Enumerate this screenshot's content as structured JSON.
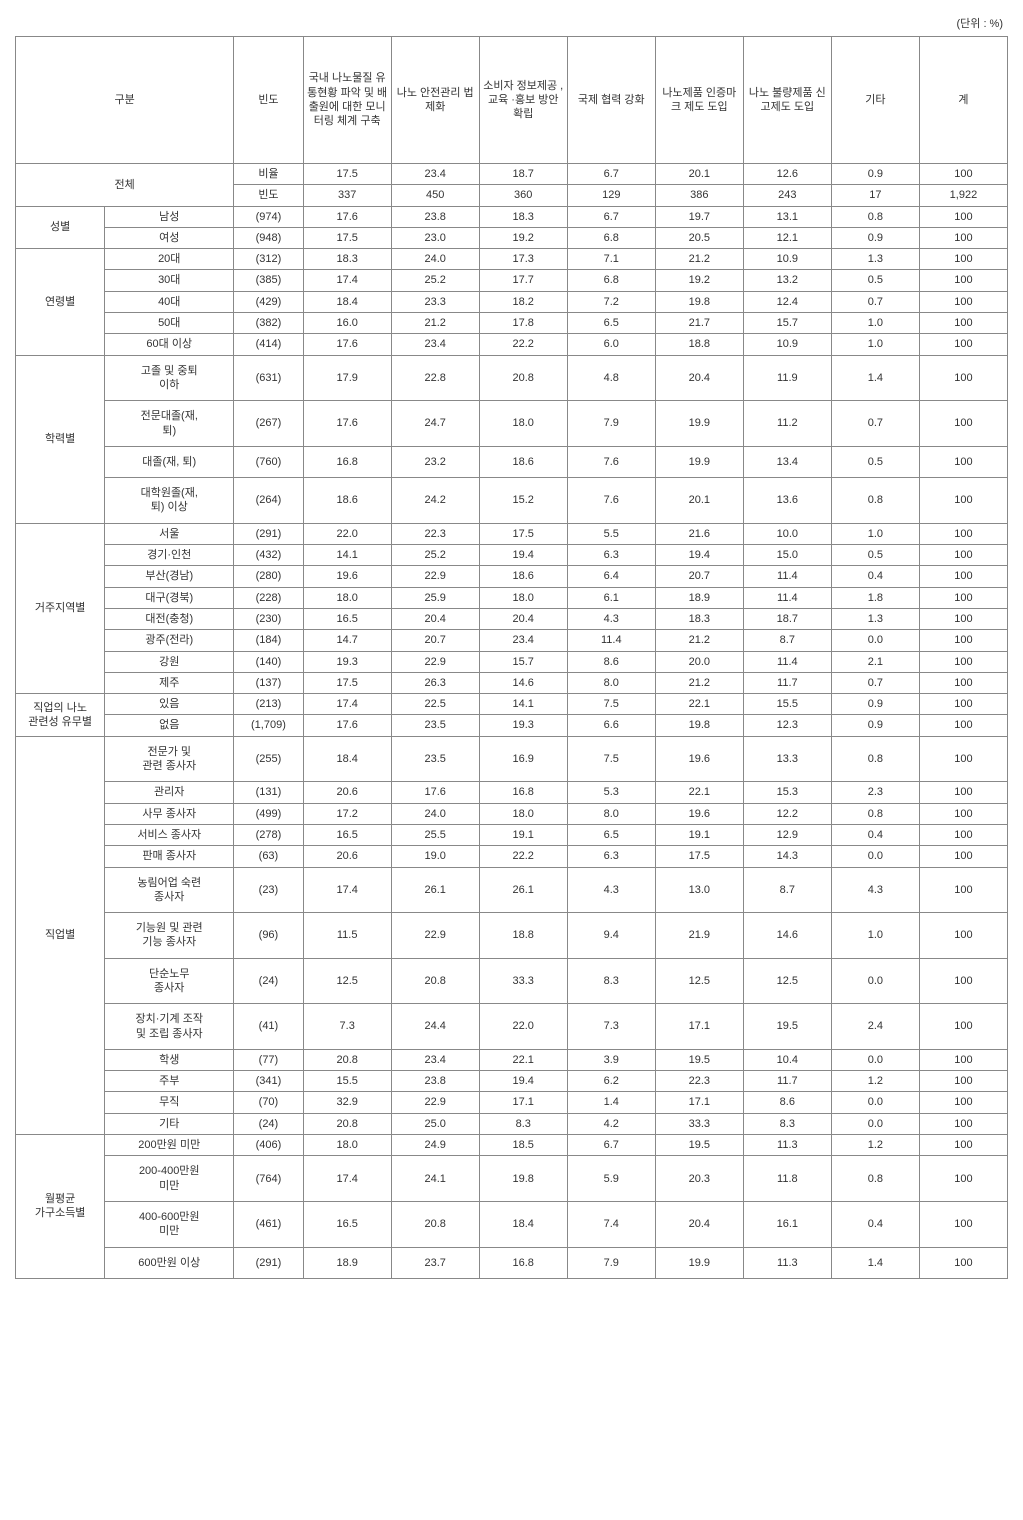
{
  "unit": "(단위 : %)",
  "headers": {
    "category": "구분",
    "frequency": "빈도",
    "col1": "국내\n나노물질\n유통현황\n파악 및\n배출원에\n대한\n모니터링\n체계\n구축",
    "col2": "나노\n안전관리\n법제화",
    "col3": "소비자\n정보제공\n, 교육\n·홍보\n방안\n확립",
    "col4": "국제\n협력\n강화",
    "col5": "나노제품\n인증마크\n제도\n도입",
    "col6": "나노\n불량제품\n신고제도\n도입",
    "col7": "기타",
    "total": "계"
  },
  "groups": [
    {
      "name": "전체",
      "rows": [
        {
          "label": "비율",
          "freq": "",
          "v": [
            "17.5",
            "23.4",
            "18.7",
            "6.7",
            "20.1",
            "12.6",
            "0.9",
            "100"
          ],
          "labelInFreq": true
        },
        {
          "label": "빈도",
          "freq": "",
          "v": [
            "337",
            "450",
            "360",
            "129",
            "386",
            "243",
            "17",
            "1,922"
          ],
          "labelInFreq": true
        }
      ],
      "spanBoth": true
    },
    {
      "name": "성별",
      "rows": [
        {
          "label": "남성",
          "freq": "(974)",
          "v": [
            "17.6",
            "23.8",
            "18.3",
            "6.7",
            "19.7",
            "13.1",
            "0.8",
            "100"
          ]
        },
        {
          "label": "여성",
          "freq": "(948)",
          "v": [
            "17.5",
            "23.0",
            "19.2",
            "6.8",
            "20.5",
            "12.1",
            "0.9",
            "100"
          ]
        }
      ]
    },
    {
      "name": "연령별",
      "rows": [
        {
          "label": "20대",
          "freq": "(312)",
          "v": [
            "18.3",
            "24.0",
            "17.3",
            "7.1",
            "21.2",
            "10.9",
            "1.3",
            "100"
          ]
        },
        {
          "label": "30대",
          "freq": "(385)",
          "v": [
            "17.4",
            "25.2",
            "17.7",
            "6.8",
            "19.2",
            "13.2",
            "0.5",
            "100"
          ]
        },
        {
          "label": "40대",
          "freq": "(429)",
          "v": [
            "18.4",
            "23.3",
            "18.2",
            "7.2",
            "19.8",
            "12.4",
            "0.7",
            "100"
          ]
        },
        {
          "label": "50대",
          "freq": "(382)",
          "v": [
            "16.0",
            "21.2",
            "17.8",
            "6.5",
            "21.7",
            "15.7",
            "1.0",
            "100"
          ]
        },
        {
          "label": "60대 이상",
          "freq": "(414)",
          "v": [
            "17.6",
            "23.4",
            "22.2",
            "6.0",
            "18.8",
            "10.9",
            "1.0",
            "100"
          ]
        }
      ]
    },
    {
      "name": "학력별",
      "rows": [
        {
          "label": "고졸 및 중퇴\n이하",
          "freq": "(631)",
          "v": [
            "17.9",
            "22.8",
            "20.8",
            "4.8",
            "20.4",
            "11.9",
            "1.4",
            "100"
          ],
          "tall": true
        },
        {
          "label": "전문대졸(재,\n퇴)",
          "freq": "(267)",
          "v": [
            "17.6",
            "24.7",
            "18.0",
            "7.9",
            "19.9",
            "11.2",
            "0.7",
            "100"
          ],
          "tall": true
        },
        {
          "label": "대졸(재, 퇴)",
          "freq": "(760)",
          "v": [
            "16.8",
            "23.2",
            "18.6",
            "7.6",
            "19.9",
            "13.4",
            "0.5",
            "100"
          ],
          "tall": true
        },
        {
          "label": "대학원졸(재,\n퇴) 이상",
          "freq": "(264)",
          "v": [
            "18.6",
            "24.2",
            "15.2",
            "7.6",
            "20.1",
            "13.6",
            "0.8",
            "100"
          ],
          "tall": true
        }
      ]
    },
    {
      "name": "거주지역별",
      "rows": [
        {
          "label": "서울",
          "freq": "(291)",
          "v": [
            "22.0",
            "22.3",
            "17.5",
            "5.5",
            "21.6",
            "10.0",
            "1.0",
            "100"
          ]
        },
        {
          "label": "경기·인천",
          "freq": "(432)",
          "v": [
            "14.1",
            "25.2",
            "19.4",
            "6.3",
            "19.4",
            "15.0",
            "0.5",
            "100"
          ]
        },
        {
          "label": "부산(경남)",
          "freq": "(280)",
          "v": [
            "19.6",
            "22.9",
            "18.6",
            "6.4",
            "20.7",
            "11.4",
            "0.4",
            "100"
          ]
        },
        {
          "label": "대구(경북)",
          "freq": "(228)",
          "v": [
            "18.0",
            "25.9",
            "18.0",
            "6.1",
            "18.9",
            "11.4",
            "1.8",
            "100"
          ]
        },
        {
          "label": "대전(충청)",
          "freq": "(230)",
          "v": [
            "16.5",
            "20.4",
            "20.4",
            "4.3",
            "18.3",
            "18.7",
            "1.3",
            "100"
          ]
        },
        {
          "label": "광주(전라)",
          "freq": "(184)",
          "v": [
            "14.7",
            "20.7",
            "23.4",
            "11.4",
            "21.2",
            "8.7",
            "0.0",
            "100"
          ]
        },
        {
          "label": "강원",
          "freq": "(140)",
          "v": [
            "19.3",
            "22.9",
            "15.7",
            "8.6",
            "20.0",
            "11.4",
            "2.1",
            "100"
          ]
        },
        {
          "label": "제주",
          "freq": "(137)",
          "v": [
            "17.5",
            "26.3",
            "14.6",
            "8.0",
            "21.2",
            "11.7",
            "0.7",
            "100"
          ]
        }
      ]
    },
    {
      "name": "직업의 나노\n관련성 유무별",
      "rows": [
        {
          "label": "있음",
          "freq": "(213)",
          "v": [
            "17.4",
            "22.5",
            "14.1",
            "7.5",
            "22.1",
            "15.5",
            "0.9",
            "100"
          ]
        },
        {
          "label": "없음",
          "freq": "(1,709)",
          "v": [
            "17.6",
            "23.5",
            "19.3",
            "6.6",
            "19.8",
            "12.3",
            "0.9",
            "100"
          ]
        }
      ]
    },
    {
      "name": "직업별",
      "rows": [
        {
          "label": "전문가 및\n관련 종사자",
          "freq": "(255)",
          "v": [
            "18.4",
            "23.5",
            "16.9",
            "7.5",
            "19.6",
            "13.3",
            "0.8",
            "100"
          ],
          "tall": true
        },
        {
          "label": "관리자",
          "freq": "(131)",
          "v": [
            "20.6",
            "17.6",
            "16.8",
            "5.3",
            "22.1",
            "15.3",
            "2.3",
            "100"
          ]
        },
        {
          "label": "사무 종사자",
          "freq": "(499)",
          "v": [
            "17.2",
            "24.0",
            "18.0",
            "8.0",
            "19.6",
            "12.2",
            "0.8",
            "100"
          ]
        },
        {
          "label": "서비스 종사자",
          "freq": "(278)",
          "v": [
            "16.5",
            "25.5",
            "19.1",
            "6.5",
            "19.1",
            "12.9",
            "0.4",
            "100"
          ]
        },
        {
          "label": "판매 종사자",
          "freq": "(63)",
          "v": [
            "20.6",
            "19.0",
            "22.2",
            "6.3",
            "17.5",
            "14.3",
            "0.0",
            "100"
          ]
        },
        {
          "label": "농림어업 숙련\n종사자",
          "freq": "(23)",
          "v": [
            "17.4",
            "26.1",
            "26.1",
            "4.3",
            "13.0",
            "8.7",
            "4.3",
            "100"
          ],
          "tall": true
        },
        {
          "label": "기능원 및 관련\n기능 종사자",
          "freq": "(96)",
          "v": [
            "11.5",
            "22.9",
            "18.8",
            "9.4",
            "21.9",
            "14.6",
            "1.0",
            "100"
          ],
          "tall": true
        },
        {
          "label": "단순노무\n종사자",
          "freq": "(24)",
          "v": [
            "12.5",
            "20.8",
            "33.3",
            "8.3",
            "12.5",
            "12.5",
            "0.0",
            "100"
          ],
          "tall": true
        },
        {
          "label": "장치·기계 조작\n및 조립 종사자",
          "freq": "(41)",
          "v": [
            "7.3",
            "24.4",
            "22.0",
            "7.3",
            "17.1",
            "19.5",
            "2.4",
            "100"
          ],
          "tall": true
        },
        {
          "label": "학생",
          "freq": "(77)",
          "v": [
            "20.8",
            "23.4",
            "22.1",
            "3.9",
            "19.5",
            "10.4",
            "0.0",
            "100"
          ]
        },
        {
          "label": "주부",
          "freq": "(341)",
          "v": [
            "15.5",
            "23.8",
            "19.4",
            "6.2",
            "22.3",
            "11.7",
            "1.2",
            "100"
          ]
        },
        {
          "label": "무직",
          "freq": "(70)",
          "v": [
            "32.9",
            "22.9",
            "17.1",
            "1.4",
            "17.1",
            "8.6",
            "0.0",
            "100"
          ]
        },
        {
          "label": "기타",
          "freq": "(24)",
          "v": [
            "20.8",
            "25.0",
            "8.3",
            "4.2",
            "33.3",
            "8.3",
            "0.0",
            "100"
          ]
        }
      ]
    },
    {
      "name": "월평균\n가구소득별",
      "rows": [
        {
          "label": "200만원  미만",
          "freq": "(406)",
          "v": [
            "18.0",
            "24.9",
            "18.5",
            "6.7",
            "19.5",
            "11.3",
            "1.2",
            "100"
          ]
        },
        {
          "label": "200-400만원\n미만",
          "freq": "(764)",
          "v": [
            "17.4",
            "24.1",
            "19.8",
            "5.9",
            "20.3",
            "11.8",
            "0.8",
            "100"
          ],
          "tall": true
        },
        {
          "label": "400-600만원\n미만",
          "freq": "(461)",
          "v": [
            "16.5",
            "20.8",
            "18.4",
            "7.4",
            "20.4",
            "16.1",
            "0.4",
            "100"
          ],
          "tall": true
        },
        {
          "label": "600만원 이상",
          "freq": "(291)",
          "v": [
            "18.9",
            "23.7",
            "16.8",
            "7.9",
            "19.9",
            "11.3",
            "1.4",
            "100"
          ],
          "tall": true
        }
      ]
    }
  ]
}
